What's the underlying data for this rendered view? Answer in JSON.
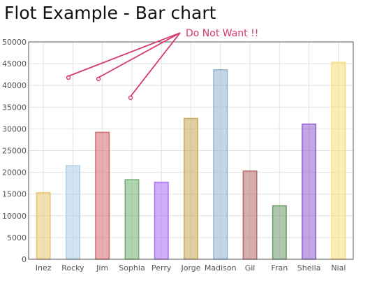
{
  "page": {
    "title": "Flot Example - Bar chart"
  },
  "chart_data": {
    "type": "bar",
    "title": "Flot Example - Bar chart",
    "xlabel": "",
    "ylabel": "",
    "ylim": [
      0,
      50000
    ],
    "yticks": [
      0,
      5000,
      10000,
      15000,
      20000,
      25000,
      30000,
      35000,
      40000,
      45000,
      50000
    ],
    "grid": true,
    "legend": "none",
    "categories": [
      "Inez",
      "Rocky",
      "Jim",
      "Sophia",
      "Perry",
      "Jorge",
      "Madison",
      "Gil",
      "Fran",
      "Sheila",
      "Nial"
    ],
    "values": [
      15300,
      21500,
      29200,
      18300,
      17700,
      32400,
      43600,
      20300,
      12300,
      31100,
      45300
    ],
    "bar_colors": [
      "#e8c66e",
      "#a9cde8",
      "#d26b6b",
      "#6fae6f",
      "#a96ef2",
      "#c9a85a",
      "#93b4d2",
      "#b86a6a",
      "#6a9a6a",
      "#8f5ccc",
      "#f6e07a"
    ],
    "annotations": [
      {
        "text": "Do Not Want !!",
        "color": "#d63a6a",
        "points_to": [
          "Rocky",
          "Jim",
          "Sophia"
        ]
      }
    ]
  }
}
